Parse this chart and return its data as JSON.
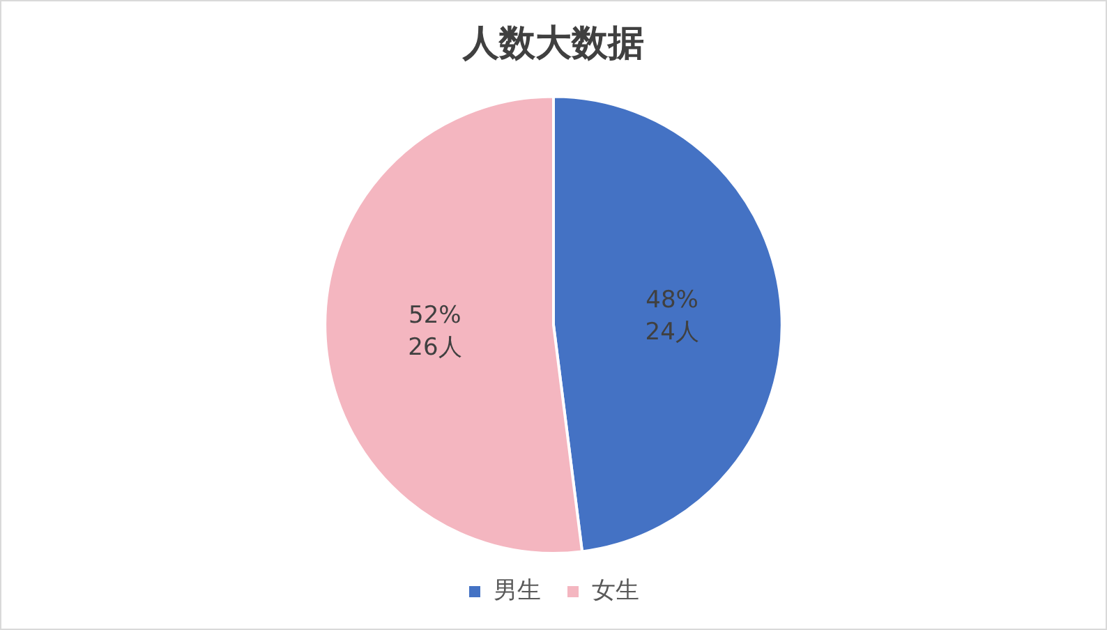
{
  "chart_data": {
    "type": "pie",
    "title": "人数大数据",
    "categories": [
      "男生",
      "女生"
    ],
    "values": [
      24,
      26
    ],
    "colors": [
      "#4472c4",
      "#f4b6c0"
    ],
    "value_labels": [
      "48%\n24人",
      "52%\n26人"
    ],
    "legend": "bottom"
  }
}
